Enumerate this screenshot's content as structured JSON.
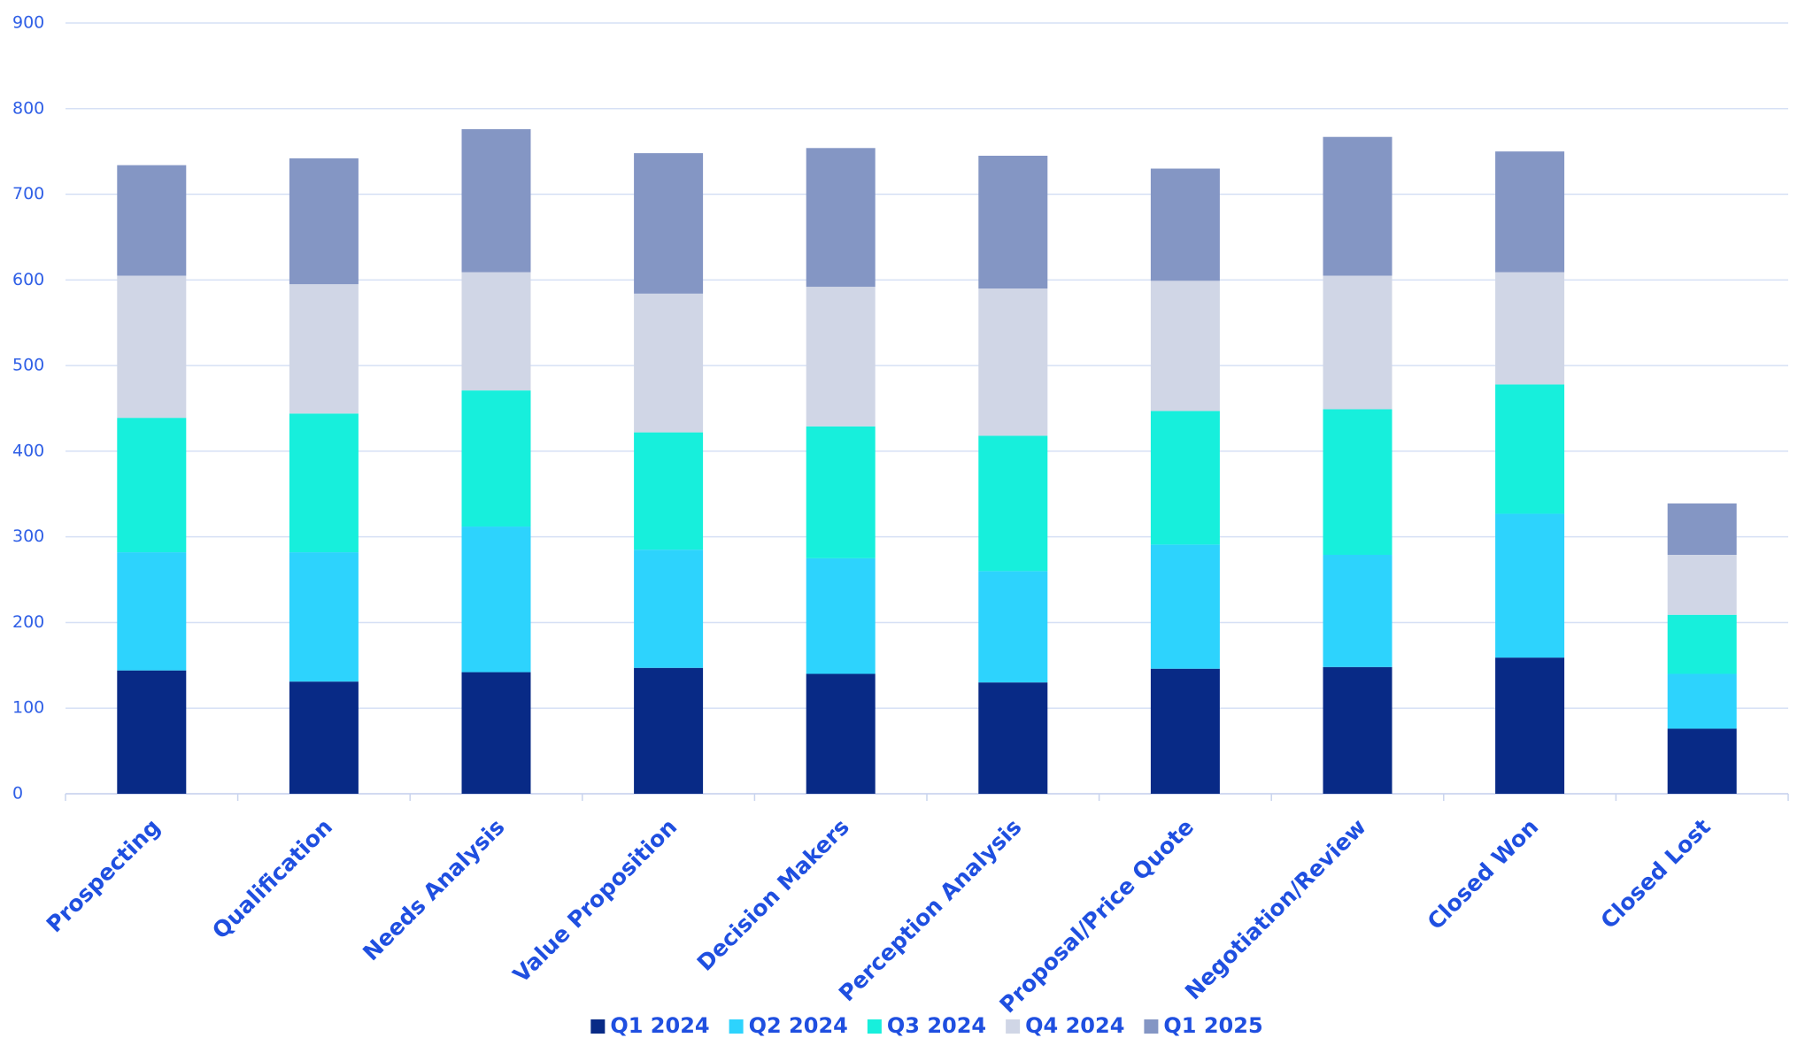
{
  "chart_data": {
    "type": "stacked_bar",
    "categories": [
      "Prospecting",
      "Qualification",
      "Needs Analysis",
      "Value Proposition",
      "Decision Makers",
      "Perception Analysis",
      "Proposal/Price Quote",
      "Negotiation/Review",
      "Closed Won",
      "Closed Lost"
    ],
    "series": [
      {
        "name": "Q1 2024",
        "color": "#082a86",
        "values": [
          144,
          131,
          142,
          147,
          140,
          130,
          146,
          148,
          159,
          76
        ]
      },
      {
        "name": "Q2 2024",
        "color": "#2dd3fd",
        "values": [
          138,
          151,
          170,
          138,
          135,
          130,
          145,
          131,
          168,
          64
        ]
      },
      {
        "name": "Q3 2024",
        "color": "#17efdc",
        "values": [
          157,
          162,
          159,
          137,
          154,
          158,
          156,
          170,
          151,
          69
        ]
      },
      {
        "name": "Q4 2024",
        "color": "#d0d6e6",
        "values": [
          166,
          151,
          138,
          162,
          163,
          172,
          152,
          156,
          131,
          70
        ]
      },
      {
        "name": "Q1 2025",
        "color": "#8496c4",
        "values": [
          129,
          147,
          167,
          164,
          162,
          155,
          131,
          162,
          141,
          60
        ]
      }
    ],
    "ylim": [
      0,
      900
    ],
    "yticks": [
      0,
      100,
      200,
      300,
      400,
      500,
      600,
      700,
      800,
      900
    ],
    "grid": true,
    "legend": "bottom"
  }
}
